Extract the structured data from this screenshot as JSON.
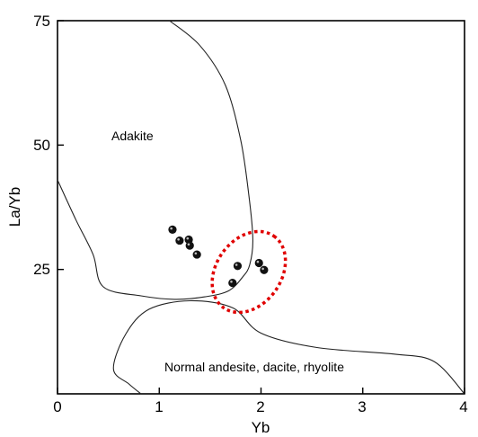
{
  "chart_data": {
    "type": "scatter",
    "title": "",
    "xlabel": "Yb",
    "ylabel": "La/Yb",
    "xlim": [
      0,
      4
    ],
    "ylim": [
      0,
      75
    ],
    "xticks": [
      0,
      1,
      2,
      3,
      4
    ],
    "yticks": [
      25,
      50,
      75
    ],
    "xtick_labels": [
      "0",
      "1",
      "2",
      "3",
      "4"
    ],
    "ytick_labels": [
      "25",
      "50",
      "75"
    ],
    "grid": false,
    "points": [
      {
        "x": 1.13,
        "y": 33.0
      },
      {
        "x": 1.2,
        "y": 30.8
      },
      {
        "x": 1.29,
        "y": 31.0
      },
      {
        "x": 1.3,
        "y": 29.8
      },
      {
        "x": 1.37,
        "y": 28.0
      },
      {
        "x": 1.77,
        "y": 25.7
      },
      {
        "x": 1.72,
        "y": 22.3
      },
      {
        "x": 1.98,
        "y": 26.3
      },
      {
        "x": 2.03,
        "y": 24.9
      }
    ],
    "region_labels": [
      {
        "text": "Adakite",
        "x": 0.72,
        "y": 52
      },
      {
        "text": "Normal andesite, dacite, rhyolite",
        "x": 1.05,
        "y": 5
      }
    ],
    "boundary_curves": [
      [
        [
          1.1,
          75
        ],
        [
          1.4,
          70
        ],
        [
          1.65,
          62
        ],
        [
          1.8,
          51
        ],
        [
          1.88,
          40
        ],
        [
          1.92,
          31
        ],
        [
          1.89,
          26
        ],
        [
          1.82,
          23.5
        ],
        [
          1.68,
          20.7
        ],
        [
          1.45,
          19.5
        ],
        [
          1.15,
          19.0
        ],
        [
          0.82,
          19.7
        ],
        [
          0.45,
          21.5
        ],
        [
          0.35,
          28
        ],
        [
          0.18,
          35
        ],
        [
          0.0,
          43
        ]
      ],
      [
        [
          0.82,
          0
        ],
        [
          0.7,
          2
        ],
        [
          0.55,
          5
        ],
        [
          0.67,
          12
        ],
        [
          0.9,
          17
        ],
        [
          1.3,
          18.7
        ],
        [
          1.72,
          17.3
        ],
        [
          2.0,
          12.2
        ],
        [
          2.55,
          9.3
        ],
        [
          3.3,
          8.0
        ],
        [
          3.7,
          6.5
        ],
        [
          4.0,
          0
        ]
      ]
    ],
    "highlight": {
      "shape": "dashed-ellipse",
      "color": "#e00000",
      "center": [
        1.88,
        24.5
      ],
      "rx": 0.32,
      "ry": 8.8,
      "rotation_deg": -55
    }
  }
}
